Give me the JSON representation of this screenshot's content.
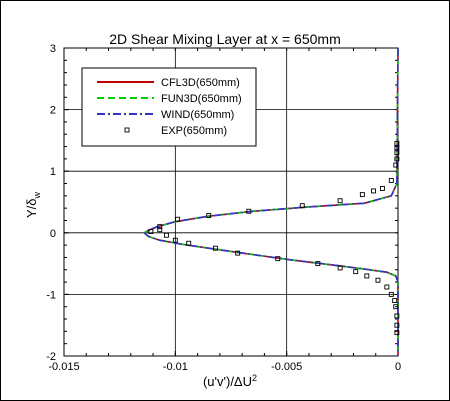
{
  "chart_data": {
    "type": "line",
    "title": "2D Shear Mixing Layer at x = 650mm",
    "xlabel": "(u'v')/ΔU",
    "xlabel_sup": "2",
    "ylabel": "Y/δ",
    "ylabel_sub": "w",
    "xlim": [
      -0.015,
      0
    ],
    "ylim": [
      -2,
      3
    ],
    "xticks": [
      -0.015,
      -0.01,
      -0.005,
      0
    ],
    "xtick_labels": [
      "-0.015",
      "-0.01",
      "-0.005",
      "0"
    ],
    "yticks": [
      -2,
      -1,
      0,
      1,
      2,
      3
    ],
    "ytick_labels": [
      "-2",
      "-1",
      "0",
      "1",
      "2",
      "3"
    ],
    "grid": true,
    "legend_position": "top-left",
    "series": [
      {
        "name": "CFL3D(650mm)",
        "style": "solid",
        "color": "#c00000",
        "x": [
          0,
          -5e-05,
          -0.0003,
          -0.0015,
          -0.004,
          -0.0065,
          -0.0085,
          -0.01,
          -0.0108,
          -0.0112,
          -0.0114,
          -0.0112,
          -0.0107,
          -0.0098,
          -0.0085,
          -0.0068,
          -0.0048,
          -0.003,
          -0.0015,
          -0.0005,
          -0.0001,
          0,
          0
        ],
        "y": [
          3.0,
          0.8,
          0.6,
          0.48,
          0.42,
          0.35,
          0.27,
          0.18,
          0.1,
          0.04,
          0.0,
          -0.06,
          -0.12,
          -0.18,
          -0.25,
          -0.34,
          -0.44,
          -0.52,
          -0.59,
          -0.64,
          -0.7,
          -0.8,
          -2.0
        ]
      },
      {
        "name": "FUN3D(650mm)",
        "style": "dashed",
        "color": "#00cc00",
        "x": [
          0,
          -5e-05,
          -0.0003,
          -0.0015,
          -0.004,
          -0.0065,
          -0.0085,
          -0.01,
          -0.0108,
          -0.0112,
          -0.0114,
          -0.0112,
          -0.0107,
          -0.0098,
          -0.0085,
          -0.0068,
          -0.0048,
          -0.003,
          -0.0015,
          -0.0005,
          -0.0001,
          0,
          0
        ],
        "y": [
          3.0,
          0.8,
          0.6,
          0.48,
          0.42,
          0.35,
          0.27,
          0.18,
          0.1,
          0.04,
          0.0,
          -0.06,
          -0.12,
          -0.18,
          -0.25,
          -0.34,
          -0.44,
          -0.52,
          -0.59,
          -0.64,
          -0.7,
          -0.8,
          -2.0
        ]
      },
      {
        "name": "WIND(650mm)",
        "style": "dashdot",
        "color": "#3333cc",
        "x": [
          0,
          -5e-05,
          -0.0003,
          -0.0015,
          -0.004,
          -0.0065,
          -0.0085,
          -0.01,
          -0.0108,
          -0.0112,
          -0.0114,
          -0.0112,
          -0.0107,
          -0.0098,
          -0.0085,
          -0.0068,
          -0.0048,
          -0.003,
          -0.0015,
          -0.0005,
          -0.0001,
          0,
          0
        ],
        "y": [
          3.0,
          0.8,
          0.6,
          0.48,
          0.42,
          0.35,
          0.27,
          0.18,
          0.1,
          0.04,
          0.0,
          -0.06,
          -0.12,
          -0.18,
          -0.25,
          -0.34,
          -0.44,
          -0.52,
          -0.59,
          -0.64,
          -0.7,
          -0.8,
          -2.0
        ]
      },
      {
        "name": "EXP(650mm)",
        "style": "markers",
        "color": "#000000",
        "x": [
          -5e-05,
          -5e-05,
          -5e-05,
          -5e-05,
          -0.0001,
          -0.0003,
          -0.0007,
          -0.0011,
          -0.0016,
          -0.0026,
          -0.0043,
          -0.0067,
          -0.0085,
          -0.0099,
          -0.0107,
          -0.0111,
          -0.0107,
          -0.0104,
          -0.01,
          -0.0094,
          -0.0082,
          -0.0072,
          -0.0054,
          -0.0036,
          -0.0026,
          -0.0019,
          -0.0014,
          -0.0009,
          -0.0005,
          -0.0003,
          -0.00015,
          -0.0001,
          -5e-05,
          -5e-05,
          -5e-05
        ],
        "y": [
          1.45,
          1.38,
          1.3,
          1.2,
          1.1,
          0.85,
          0.72,
          0.68,
          0.62,
          0.52,
          0.44,
          0.35,
          0.28,
          0.22,
          0.1,
          0.02,
          0.05,
          -0.04,
          -0.12,
          -0.17,
          -0.25,
          -0.33,
          -0.42,
          -0.5,
          -0.57,
          -0.63,
          -0.7,
          -0.77,
          -0.88,
          -1.0,
          -1.1,
          -1.2,
          -1.35,
          -1.5,
          -1.62
        ]
      }
    ]
  }
}
